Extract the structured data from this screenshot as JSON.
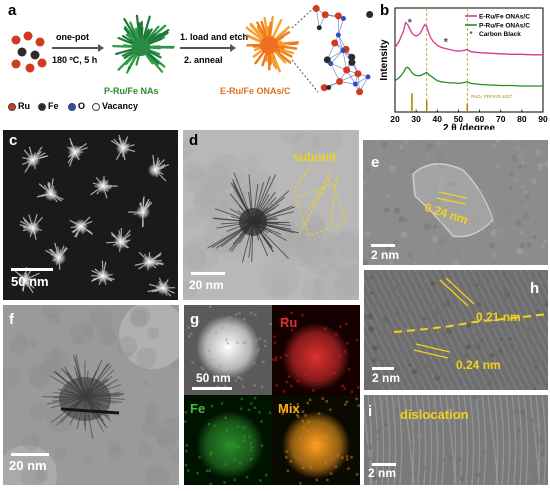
{
  "panel_a": {
    "label": "a",
    "step1_top": "one-pot",
    "step1_bottom": "180 ºC, 5 h",
    "intermediate": "P-Ru/Fe NAs",
    "step2_top": "1. load and etch",
    "step2_bottom": "2. anneal",
    "product": "E-Ru/Fe ONAs/C",
    "legend": [
      {
        "symbol_color": "#d23a1e",
        "label": "Ru"
      },
      {
        "symbol_color": "#2b2b2b",
        "label": "Fe"
      },
      {
        "symbol_color": "#2b4fbf",
        "label": "O"
      },
      {
        "symbol_color": "#ffffff",
        "label": "Vacancy"
      }
    ]
  },
  "panel_b": {
    "label": "b",
    "chart_data": {
      "type": "line",
      "xlabel": "2 θ /degree",
      "ylabel": "Intensity",
      "xlim": [
        20,
        90
      ],
      "xticks": [
        20,
        30,
        40,
        50,
        60,
        70,
        80,
        90
      ],
      "series": [
        {
          "name": "E-Ru/Fe ONAs/C",
          "color": "#d8388f",
          "x": [
            20,
            22,
            24,
            25,
            26,
            27,
            28,
            29,
            30,
            31,
            32,
            33,
            34,
            35,
            36,
            37,
            38,
            40,
            42,
            44,
            46,
            48,
            50,
            52,
            54,
            56,
            60,
            65,
            70,
            75,
            80,
            85,
            90
          ],
          "y": [
            0.62,
            0.68,
            0.78,
            0.86,
            0.84,
            0.8,
            0.76,
            0.74,
            0.73,
            0.74,
            0.76,
            0.8,
            0.84,
            0.82,
            0.76,
            0.71,
            0.68,
            0.64,
            0.62,
            0.61,
            0.6,
            0.59,
            0.585,
            0.59,
            0.6,
            0.58,
            0.57,
            0.565,
            0.56,
            0.555,
            0.555,
            0.55,
            0.55
          ]
        },
        {
          "name": "P-Ru/Fe ONAs/C",
          "color": "#2a8a2a",
          "x": [
            20,
            22,
            24,
            25,
            26,
            27,
            28,
            29,
            30,
            32,
            34,
            35,
            36,
            38,
            40,
            42,
            44,
            46,
            48,
            50,
            52,
            54,
            56,
            60,
            65,
            70,
            75,
            80,
            85,
            90
          ],
          "y": [
            0.3,
            0.33,
            0.38,
            0.42,
            0.43,
            0.41,
            0.38,
            0.36,
            0.35,
            0.35,
            0.37,
            0.38,
            0.36,
            0.33,
            0.3,
            0.29,
            0.285,
            0.28,
            0.28,
            0.275,
            0.28,
            0.29,
            0.275,
            0.265,
            0.26,
            0.255,
            0.255,
            0.25,
            0.25,
            0.25
          ]
        }
      ],
      "legend": [
        "E-Ru/Fe ONAs/C",
        "P-Ru/Fe ONAs/C"
      ],
      "carbon_black_label": "Carbon Black",
      "carbon_black_marks": [
        {
          "x": 27,
          "series": 0
        },
        {
          "x": 44,
          "series": 0
        }
      ],
      "reference": {
        "label": "RuO₂ PDF#43-1027",
        "color": "#a88a00",
        "x": [
          28.0,
          35.0,
          54.2
        ],
        "heights": [
          0.18,
          0.11,
          0.08
        ]
      },
      "dashed_lines_x": [
        35.0,
        54.2
      ]
    }
  },
  "panel_c": {
    "label": "c",
    "scalebar": "50 nm"
  },
  "panel_d": {
    "label": "d",
    "scalebar": "20 nm",
    "annotation": "subunit"
  },
  "panel_e": {
    "label": "e",
    "scalebar": "2 nm",
    "annotation": "0.24 nm"
  },
  "panel_f": {
    "label": "f",
    "scalebar": "20 nm"
  },
  "panel_g": {
    "label": "g",
    "scalebar": "50 nm",
    "maps": [
      {
        "label": "Ru",
        "color": "#e03030"
      },
      {
        "label": "Fe",
        "color": "#3fbf3f"
      },
      {
        "label": "Mix",
        "color": "#ffb020"
      }
    ]
  },
  "panel_h": {
    "label": "h",
    "scalebar": "2 nm",
    "annotation_top": "0.21 nm",
    "annotation_bottom": "0.24 nm"
  },
  "panel_i": {
    "label": "i",
    "scalebar": "2 nm",
    "annotation": "dislocation"
  }
}
